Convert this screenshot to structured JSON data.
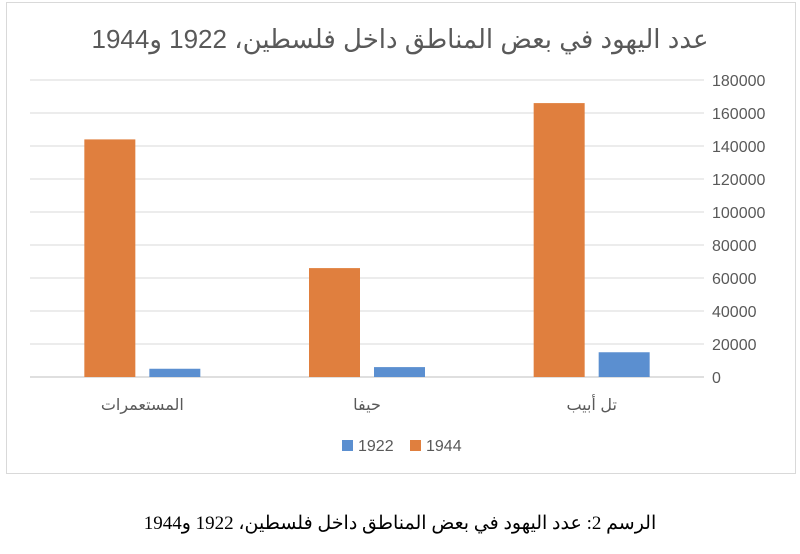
{
  "chart_data": {
    "type": "bar",
    "title": "عدد اليهود في بعض المناطق داخل فلسطين، 1922 و1944",
    "categories": [
      "المستعمرات",
      "حيفا",
      "تل أبيب"
    ],
    "series": [
      {
        "name": "1944",
        "color": "#E07F3E",
        "values": [
          144000,
          66000,
          166000
        ]
      },
      {
        "name": "1922",
        "color": "#5B8FD0",
        "values": [
          5000,
          6000,
          15000
        ]
      }
    ],
    "ylim": [
      0,
      180000
    ],
    "yticks": [
      "0",
      "20000",
      "40000",
      "60000",
      "80000",
      "100000",
      "120000",
      "140000",
      "160000",
      "180000"
    ],
    "grid": true,
    "legend": "bottom",
    "legend_order": [
      "1922",
      "1944"
    ]
  },
  "caption": "الرسم 2: عدد اليهود في بعض المناطق داخل فلسطين، 1922 و1944"
}
